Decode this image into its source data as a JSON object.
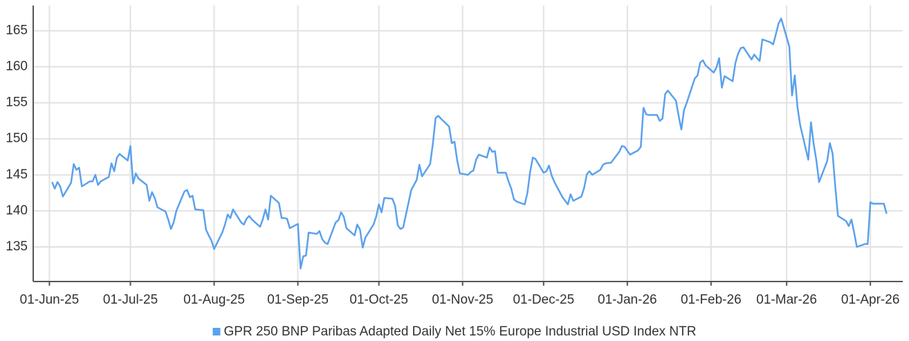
{
  "chart_data": {
    "type": "line",
    "x": [
      "2025-06-02",
      "2025-06-03",
      "2025-06-04",
      "2025-06-05",
      "2025-06-06",
      "2025-06-09",
      "2025-06-10",
      "2025-06-11",
      "2025-06-12",
      "2025-06-13",
      "2025-06-16",
      "2025-06-17",
      "2025-06-18",
      "2025-06-19",
      "2025-06-20",
      "2025-06-23",
      "2025-06-24",
      "2025-06-25",
      "2025-06-26",
      "2025-06-27",
      "2025-06-30",
      "2025-07-01",
      "2025-07-02",
      "2025-07-03",
      "2025-07-04",
      "2025-07-07",
      "2025-07-08",
      "2025-07-09",
      "2025-07-10",
      "2025-07-11",
      "2025-07-14",
      "2025-07-15",
      "2025-07-16",
      "2025-07-17",
      "2025-07-18",
      "2025-07-21",
      "2025-07-22",
      "2025-07-23",
      "2025-07-24",
      "2025-07-25",
      "2025-07-28",
      "2025-07-29",
      "2025-07-30",
      "2025-07-31",
      "2025-08-01",
      "2025-08-04",
      "2025-08-05",
      "2025-08-06",
      "2025-08-07",
      "2025-08-08",
      "2025-08-11",
      "2025-08-12",
      "2025-08-13",
      "2025-08-14",
      "2025-08-15",
      "2025-08-18",
      "2025-08-19",
      "2025-08-20",
      "2025-08-21",
      "2025-08-22",
      "2025-08-25",
      "2025-08-26",
      "2025-08-27",
      "2025-08-28",
      "2025-08-29",
      "2025-09-01",
      "2025-09-02",
      "2025-09-03",
      "2025-09-04",
      "2025-09-05",
      "2025-09-08",
      "2025-09-09",
      "2025-09-10",
      "2025-09-11",
      "2025-09-12",
      "2025-09-15",
      "2025-09-16",
      "2025-09-17",
      "2025-09-18",
      "2025-09-19",
      "2025-09-22",
      "2025-09-23",
      "2025-09-24",
      "2025-09-25",
      "2025-09-26",
      "2025-09-29",
      "2025-09-30",
      "2025-10-01",
      "2025-10-02",
      "2025-10-03",
      "2025-10-06",
      "2025-10-07",
      "2025-10-08",
      "2025-10-09",
      "2025-10-10",
      "2025-10-13",
      "2025-10-14",
      "2025-10-15",
      "2025-10-16",
      "2025-10-17",
      "2025-10-20",
      "2025-10-21",
      "2025-10-22",
      "2025-10-23",
      "2025-10-24",
      "2025-10-27",
      "2025-10-28",
      "2025-10-29",
      "2025-10-30",
      "2025-10-31",
      "2025-11-03",
      "2025-11-04",
      "2025-11-05",
      "2025-11-06",
      "2025-11-07",
      "2025-11-10",
      "2025-11-11",
      "2025-11-12",
      "2025-11-13",
      "2025-11-14",
      "2025-11-17",
      "2025-11-18",
      "2025-11-19",
      "2025-11-20",
      "2025-11-21",
      "2025-11-24",
      "2025-11-25",
      "2025-11-26",
      "2025-11-27",
      "2025-11-28",
      "2025-12-01",
      "2025-12-02",
      "2025-12-03",
      "2025-12-04",
      "2025-12-05",
      "2025-12-08",
      "2025-12-09",
      "2025-12-10",
      "2025-12-11",
      "2025-12-12",
      "2025-12-15",
      "2025-12-16",
      "2025-12-17",
      "2025-12-18",
      "2025-12-19",
      "2025-12-22",
      "2025-12-23",
      "2025-12-24",
      "2025-12-26",
      "2025-12-29",
      "2025-12-30",
      "2025-12-31",
      "2026-01-02",
      "2026-01-05",
      "2026-01-06",
      "2026-01-07",
      "2026-01-08",
      "2026-01-09",
      "2026-01-12",
      "2026-01-13",
      "2026-01-14",
      "2026-01-15",
      "2026-01-16",
      "2026-01-19",
      "2026-01-20",
      "2026-01-21",
      "2026-01-22",
      "2026-01-23",
      "2026-01-26",
      "2026-01-27",
      "2026-01-28",
      "2026-01-29",
      "2026-01-30",
      "2026-02-02",
      "2026-02-03",
      "2026-02-04",
      "2026-02-05",
      "2026-02-06",
      "2026-02-09",
      "2026-02-10",
      "2026-02-11",
      "2026-02-12",
      "2026-02-13",
      "2026-02-16",
      "2026-02-17",
      "2026-02-18",
      "2026-02-19",
      "2026-02-20",
      "2026-02-23",
      "2026-02-24",
      "2026-02-25",
      "2026-02-26",
      "2026-02-27",
      "2026-03-02",
      "2026-03-03",
      "2026-03-04",
      "2026-03-05",
      "2026-03-06",
      "2026-03-09",
      "2026-03-10",
      "2026-03-11",
      "2026-03-12",
      "2026-03-13",
      "2026-03-16",
      "2026-03-17",
      "2026-03-18",
      "2026-03-19",
      "2026-03-20",
      "2026-03-23",
      "2026-03-24",
      "2026-03-25",
      "2026-03-26",
      "2026-03-27",
      "2026-03-30",
      "2026-03-31",
      "2026-04-01",
      "2026-04-02",
      "2026-04-06",
      "2026-04-07"
    ],
    "series": [
      {
        "name": "GPR 250 BNP Paribas Adapted Daily Net 15% Europe Industrial USD Index NTR",
        "color": "#5ba1ec",
        "values": [
          144.0,
          143.1,
          144.0,
          143.4,
          142.0,
          143.9,
          146.5,
          145.7,
          146.0,
          143.4,
          144.1,
          144.1,
          145.0,
          143.6,
          144.1,
          144.7,
          146.6,
          145.5,
          147.4,
          147.9,
          147.0,
          149.0,
          143.8,
          145.2,
          144.5,
          143.6,
          141.4,
          142.6,
          141.8,
          140.5,
          139.9,
          138.8,
          137.5,
          138.4,
          140.0,
          142.7,
          142.9,
          141.9,
          142.1,
          140.2,
          140.1,
          137.4,
          136.6,
          135.9,
          134.7,
          137.0,
          138.1,
          139.5,
          139.0,
          140.2,
          138.4,
          138.1,
          138.9,
          139.3,
          138.8,
          137.8,
          138.8,
          140.2,
          138.8,
          142.1,
          141.1,
          139.0,
          139.0,
          138.9,
          137.6,
          138.2,
          132.0,
          133.7,
          133.8,
          137.0,
          136.8,
          137.2,
          136.1,
          135.6,
          135.4,
          138.4,
          138.7,
          139.8,
          139.2,
          137.6,
          136.6,
          138.1,
          137.4,
          134.9,
          136.3,
          138.1,
          139.2,
          140.9,
          139.8,
          141.8,
          141.7,
          140.7,
          138.0,
          137.5,
          137.7,
          142.9,
          143.6,
          144.3,
          146.4,
          144.8,
          146.5,
          149.4,
          152.9,
          153.2,
          152.8,
          151.7,
          149.4,
          149.6,
          147.0,
          145.2,
          145.0,
          145.4,
          145.6,
          147.1,
          147.8,
          147.4,
          148.8,
          148.2,
          148.3,
          145.3,
          145.3,
          144.1,
          143.1,
          141.6,
          141.3,
          140.9,
          142.5,
          145.4,
          147.4,
          147.2,
          145.3,
          145.5,
          146.3,
          144.9,
          144.0,
          141.9,
          141.4,
          140.9,
          142.3,
          141.4,
          142.0,
          143.2,
          145.1,
          145.5,
          145.0,
          145.7,
          146.4,
          146.6,
          146.7,
          148.2,
          149.0,
          148.9,
          147.8,
          148.4,
          148.9,
          154.3,
          153.4,
          153.3,
          153.3,
          152.5,
          152.8,
          156.2,
          156.7,
          155.3,
          153.2,
          151.3,
          154.0,
          155.0,
          158.4,
          158.8,
          160.6,
          160.9,
          160.2,
          159.2,
          159.9,
          161.2,
          157.1,
          158.7,
          158.0,
          160.5,
          161.8,
          162.6,
          162.7,
          161.0,
          161.7,
          161.2,
          160.8,
          163.8,
          163.4,
          163.1,
          164.5,
          166.0,
          166.7,
          162.8,
          156.0,
          158.8,
          154.4,
          151.9,
          147.1,
          152.3,
          149.3,
          147.0,
          144.0,
          146.9,
          149.4,
          148.0,
          143.4,
          139.3,
          138.6,
          137.9,
          138.8,
          137.0,
          135.0,
          135.4,
          135.4,
          141.2,
          141.0,
          141.0,
          139.6
        ]
      }
    ],
    "xlim": [
      "2025-05-26",
      "2026-04-13"
    ],
    "xticks": [
      {
        "value": "2025-06-01",
        "label": "01-Jun-25"
      },
      {
        "value": "2025-07-01",
        "label": "01-Jul-25"
      },
      {
        "value": "2025-08-01",
        "label": "01-Aug-25"
      },
      {
        "value": "2025-09-01",
        "label": "01-Sep-25"
      },
      {
        "value": "2025-10-01",
        "label": "01-Oct-25"
      },
      {
        "value": "2025-11-01",
        "label": "01-Nov-25"
      },
      {
        "value": "2025-12-01",
        "label": "01-Dec-25"
      },
      {
        "value": "2026-01-01",
        "label": "01-Jan-26"
      },
      {
        "value": "2026-02-01",
        "label": "01-Feb-26"
      },
      {
        "value": "2026-03-01",
        "label": "01-Mar-26"
      },
      {
        "value": "2026-04-01",
        "label": "01-Apr-26"
      }
    ],
    "ylim": [
      130.2,
      168.5
    ],
    "yticks": [
      135,
      140,
      145,
      150,
      155,
      160,
      165
    ],
    "grid": true,
    "legend": "bottom"
  }
}
